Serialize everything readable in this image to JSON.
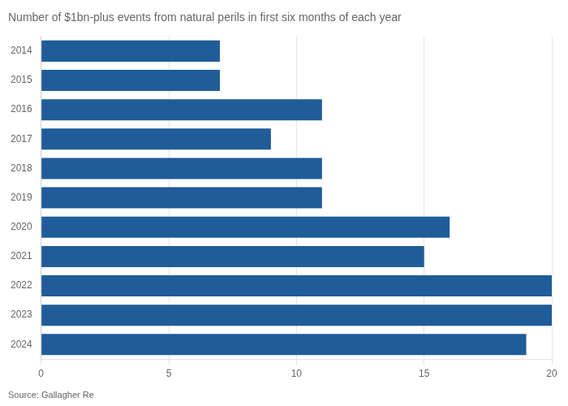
{
  "chart_data": {
    "type": "bar",
    "orientation": "horizontal",
    "title": "Number of $1bn-plus events from natural perils in first six months of each year",
    "annotations": [
      "Source: Gallagher Re"
    ],
    "categories": [
      "2014",
      "2015",
      "2016",
      "2017",
      "2018",
      "2019",
      "2020",
      "2021",
      "2022",
      "2023",
      "2024"
    ],
    "values": [
      7,
      7,
      11,
      9,
      11,
      11,
      16,
      15,
      20,
      20,
      19
    ],
    "color": "#1f5c99",
    "xlim": [
      0,
      20
    ],
    "xticks": [
      0,
      5,
      10,
      15,
      20
    ],
    "grid": true
  }
}
